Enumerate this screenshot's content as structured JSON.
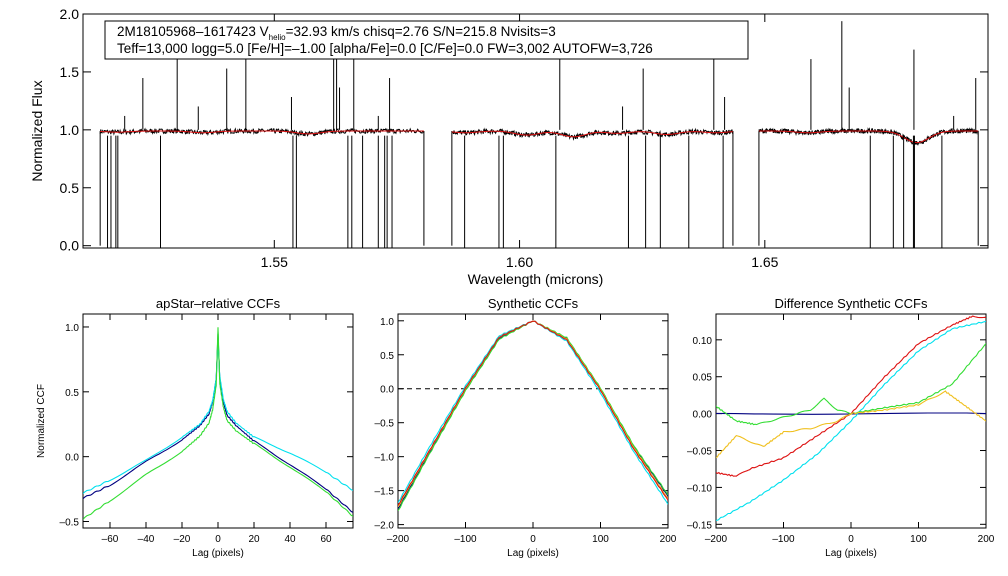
{
  "chart_data": [
    {
      "id": "spectrum",
      "type": "line",
      "title": "",
      "xlabel": "Wavelength (microns)",
      "ylabel": "Normalized Flux",
      "xlim": [
        1.511,
        1.6955
      ],
      "ylim": [
        -0.02,
        2.0
      ],
      "xticks": [
        {
          "v": 1.55,
          "label": "1.55"
        },
        {
          "v": 1.6,
          "label": "1.60"
        },
        {
          "v": 1.65,
          "label": "1.65"
        }
      ],
      "yticks": [
        {
          "v": 0.0,
          "label": "0.0"
        },
        {
          "v": 0.5,
          "label": "0.5"
        },
        {
          "v": 1.0,
          "label": "1.0"
        },
        {
          "v": 1.5,
          "label": "1.5"
        },
        {
          "v": 2.0,
          "label": "2.0"
        }
      ],
      "info": {
        "star": "2M18105968–1617423",
        "v_prefix": "V",
        "v_sub": "helio",
        "v_rest": "=32.93 km/s  chisq=2.76  S/N=215.8  Nvisits=3",
        "line2": "Teff=13,000 logg=5.0 [Fe/H]=–1.00 [alpha/Fe]=0.0 [C/Fe]=0.0 FW=3,002 AUTOFW=3,726"
      },
      "chips": [
        [
          1.5145,
          1.5805
        ],
        [
          1.5862,
          1.6435
        ],
        [
          1.6488,
          1.6935
        ]
      ],
      "absorption": [
        {
          "x": 1.518,
          "y": 0.99
        },
        {
          "x": 1.5355,
          "y": 0.985
        },
        {
          "x": 1.557,
          "y": 0.975
        },
        {
          "x": 1.589,
          "y": 0.985
        },
        {
          "x": 1.6015,
          "y": 0.965
        },
        {
          "x": 1.611,
          "y": 0.95
        },
        {
          "x": 1.62,
          "y": 0.98
        },
        {
          "x": 1.63,
          "y": 0.97
        },
        {
          "x": 1.64,
          "y": 0.985
        },
        {
          "x": 1.6589,
          "y": 0.985
        },
        {
          "x": 1.681,
          "y": 0.9
        }
      ],
      "spikes_up": [
        1.5195,
        1.5232,
        1.5302,
        1.5345,
        1.5403,
        1.5442,
        1.5535,
        1.5621,
        1.5627,
        1.5633,
        1.5662,
        1.5712,
        1.5735,
        1.6082,
        1.621,
        1.6252,
        1.6396,
        1.6418,
        1.6594,
        1.6657,
        1.6672,
        1.6804,
        1.6885,
        1.693
      ],
      "spikes_down": [
        1.516,
        1.5167,
        1.5177,
        1.5181,
        1.5268,
        1.5538,
        1.5545,
        1.565,
        1.5658,
        1.568,
        1.5712,
        1.5725,
        1.573,
        1.574,
        1.5888,
        1.5958,
        1.5967,
        1.6074,
        1.6222,
        1.6257,
        1.6287,
        1.6345,
        1.6415,
        1.6715,
        1.6762,
        1.6783,
        1.6803,
        1.6805,
        1.6861
      ]
    },
    {
      "id": "apstar-ccf",
      "type": "line",
      "title": "apStar–relative CCFs",
      "xlabel": "Lag (pixels)",
      "ylabel": "Normalized CCF",
      "xlim": [
        -75,
        75
      ],
      "ylim": [
        -0.55,
        1.1
      ],
      "xticks": [
        {
          "v": -60,
          "label": "–60"
        },
        {
          "v": -40,
          "label": "–40"
        },
        {
          "v": -20,
          "label": "–20"
        },
        {
          "v": 0,
          "label": "0"
        },
        {
          "v": 20,
          "label": "20"
        },
        {
          "v": 40,
          "label": "40"
        },
        {
          "v": 60,
          "label": "60"
        }
      ],
      "yticks": [
        {
          "v": -0.5,
          "label": "–0.5"
        },
        {
          "v": 0.0,
          "label": "0.0"
        },
        {
          "v": 0.5,
          "label": "0.5"
        },
        {
          "v": 1.0,
          "label": "1.0"
        }
      ],
      "series": [
        {
          "name": "navy",
          "color": "#000080",
          "x": [
            -75,
            -60,
            -40,
            -20,
            -10,
            -5,
            -3,
            -1,
            0,
            1,
            3,
            5,
            10,
            20,
            40,
            60,
            75
          ],
          "y": [
            -0.32,
            -0.22,
            -0.04,
            0.13,
            0.24,
            0.33,
            0.42,
            0.6,
            0.95,
            0.6,
            0.42,
            0.32,
            0.24,
            0.12,
            -0.06,
            -0.25,
            -0.43
          ]
        },
        {
          "name": "cyan",
          "color": "#00e0ee",
          "x": [
            -75,
            -60,
            -40,
            -20,
            -10,
            -5,
            -3,
            -1,
            0,
            1,
            3,
            5,
            10,
            20,
            40,
            60,
            75
          ],
          "y": [
            -0.28,
            -0.18,
            -0.03,
            0.15,
            0.25,
            0.35,
            0.43,
            0.6,
            0.9,
            0.62,
            0.44,
            0.35,
            0.26,
            0.15,
            0.03,
            -0.12,
            -0.26
          ]
        },
        {
          "name": "green",
          "color": "#33dd33",
          "x": [
            -75,
            -60,
            -40,
            -20,
            -10,
            -5,
            -3,
            -1,
            0,
            1,
            3,
            5,
            10,
            20,
            40,
            60,
            75
          ],
          "y": [
            -0.48,
            -0.34,
            -0.14,
            0.04,
            0.16,
            0.26,
            0.36,
            0.55,
            1.0,
            0.56,
            0.38,
            0.28,
            0.2,
            0.1,
            -0.08,
            -0.27,
            -0.46
          ]
        }
      ]
    },
    {
      "id": "synthetic-ccf",
      "type": "line",
      "title": "Synthetic CCFs",
      "xlabel": "Lag (pixels)",
      "ylabel": "",
      "xlim": [
        -200,
        200
      ],
      "ylim": [
        -2.05,
        1.1
      ],
      "xticks": [
        {
          "v": -200,
          "label": "–200"
        },
        {
          "v": -100,
          "label": "–100"
        },
        {
          "v": 0,
          "label": "0"
        },
        {
          "v": 100,
          "label": "100"
        },
        {
          "v": 200,
          "label": "200"
        }
      ],
      "yticks": [
        {
          "v": 1.0,
          "label": "1.0"
        },
        {
          "v": 0.5,
          "label": "0.5"
        },
        {
          "v": 0.0,
          "label": "0.0"
        },
        {
          "v": -0.5,
          "label": "–0.5"
        },
        {
          "v": -1.0,
          "label": "–1.0"
        },
        {
          "v": -1.5,
          "label": "–1.5"
        },
        {
          "v": -2.0,
          "label": "–2.0"
        }
      ],
      "zero_line": 0.0,
      "series": [
        {
          "name": "navy",
          "color": "#000080",
          "x": [
            -200,
            -150,
            -100,
            -50,
            0,
            50,
            100,
            150,
            200
          ],
          "y": [
            -1.77,
            -0.88,
            -0.02,
            0.74,
            1.0,
            0.74,
            0.0,
            -0.86,
            -1.58
          ]
        },
        {
          "name": "cyan",
          "color": "#00e0ee",
          "x": [
            -200,
            -150,
            -100,
            -50,
            0,
            50,
            100,
            150,
            200
          ],
          "y": [
            -1.68,
            -0.8,
            0.04,
            0.78,
            1.0,
            0.7,
            -0.06,
            -0.94,
            -1.7
          ]
        },
        {
          "name": "green",
          "color": "#33dd33",
          "x": [
            -200,
            -150,
            -100,
            -50,
            0,
            50,
            100,
            150,
            200
          ],
          "y": [
            -1.8,
            -0.9,
            -0.03,
            0.73,
            1.0,
            0.75,
            0.01,
            -0.85,
            -1.56
          ]
        },
        {
          "name": "yellow",
          "color": "#f0c020",
          "x": [
            -200,
            -150,
            -100,
            -50,
            0,
            50,
            100,
            150,
            200
          ],
          "y": [
            -1.74,
            -0.86,
            0.0,
            0.76,
            1.0,
            0.73,
            -0.01,
            -0.88,
            -1.62
          ]
        },
        {
          "name": "red",
          "color": "#dd1111",
          "x": [
            -200,
            -150,
            -100,
            -50,
            0,
            50,
            100,
            150,
            200
          ],
          "y": [
            -1.72,
            -0.85,
            0.01,
            0.76,
            1.0,
            0.72,
            -0.02,
            -0.9,
            -1.64
          ]
        }
      ]
    },
    {
      "id": "difference-ccf",
      "type": "line",
      "title": "Difference Synthetic CCFs",
      "xlabel": "Lag (pixels)",
      "ylabel": "",
      "xlim": [
        -200,
        200
      ],
      "ylim": [
        -0.155,
        0.135
      ],
      "xticks": [
        {
          "v": -200,
          "label": "–200"
        },
        {
          "v": -100,
          "label": "–100"
        },
        {
          "v": 0,
          "label": "0"
        },
        {
          "v": 100,
          "label": "100"
        },
        {
          "v": 200,
          "label": "200"
        }
      ],
      "yticks": [
        {
          "v": 0.1,
          "label": "0.10"
        },
        {
          "v": 0.05,
          "label": "0.05"
        },
        {
          "v": 0.0,
          "label": "0.00"
        },
        {
          "v": -0.05,
          "label": "–0.05"
        },
        {
          "v": -0.1,
          "label": "–0.10"
        },
        {
          "v": -0.15,
          "label": "–0.15"
        }
      ],
      "series": [
        {
          "name": "navy",
          "color": "#000080",
          "x": [
            -200,
            200
          ],
          "y": [
            0.0,
            0.0
          ]
        },
        {
          "name": "cyan",
          "color": "#00e0ee",
          "x": [
            -200,
            -150,
            -100,
            -50,
            0,
            50,
            100,
            150,
            200
          ],
          "y": [
            -0.145,
            -0.12,
            -0.09,
            -0.055,
            -0.01,
            0.04,
            0.085,
            0.115,
            0.125
          ]
        },
        {
          "name": "red",
          "color": "#dd1111",
          "x": [
            -200,
            -170,
            -150,
            -100,
            -50,
            0,
            50,
            100,
            150,
            180,
            200
          ],
          "y": [
            -0.08,
            -0.085,
            -0.075,
            -0.06,
            -0.03,
            0.0,
            0.05,
            0.095,
            0.12,
            0.132,
            0.13
          ]
        },
        {
          "name": "green",
          "color": "#33dd33",
          "x": [
            -200,
            -170,
            -140,
            -100,
            -60,
            -40,
            -20,
            0,
            50,
            100,
            150,
            200
          ],
          "y": [
            0.01,
            -0.01,
            -0.015,
            -0.005,
            0.005,
            0.02,
            0.005,
            0.0,
            0.008,
            0.015,
            0.04,
            0.095
          ]
        },
        {
          "name": "yellow",
          "color": "#f0c020",
          "x": [
            -200,
            -170,
            -130,
            -100,
            -60,
            -20,
            0,
            50,
            100,
            140,
            170,
            200
          ],
          "y": [
            -0.06,
            -0.03,
            -0.045,
            -0.025,
            -0.02,
            -0.01,
            0.0,
            0.005,
            0.012,
            0.03,
            0.01,
            -0.01
          ]
        }
      ]
    }
  ]
}
